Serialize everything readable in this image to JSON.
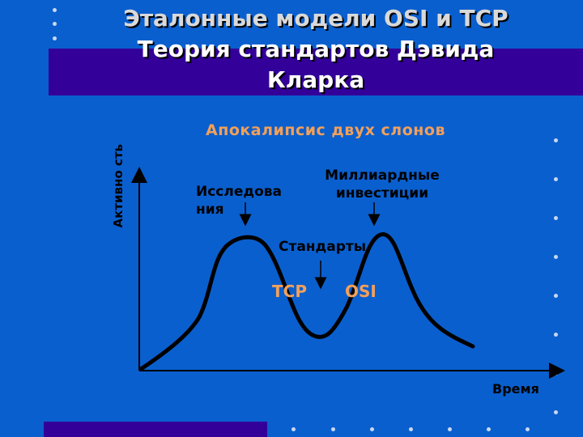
{
  "slide": {
    "title_line1": "Эталонные модели OSI и TCP",
    "title_line2": "Теория стандартов Дэвида",
    "title_line3": "Кларка",
    "colors": {
      "background": "#0a5fce",
      "band": "#330099",
      "accent": "#f2a05a"
    }
  },
  "diagram": {
    "subtitle": "Апокалипсис двух слонов",
    "y_axis_label": "Активно сть",
    "x_axis_label": "Время",
    "annotation_research": "Исследова ния",
    "annotation_billion_line1": "Миллиардные",
    "annotation_billion_line2": "инвестиции",
    "annotation_standards": "Стандарты",
    "label_tcp": "TCP",
    "label_osi": "OSI"
  }
}
